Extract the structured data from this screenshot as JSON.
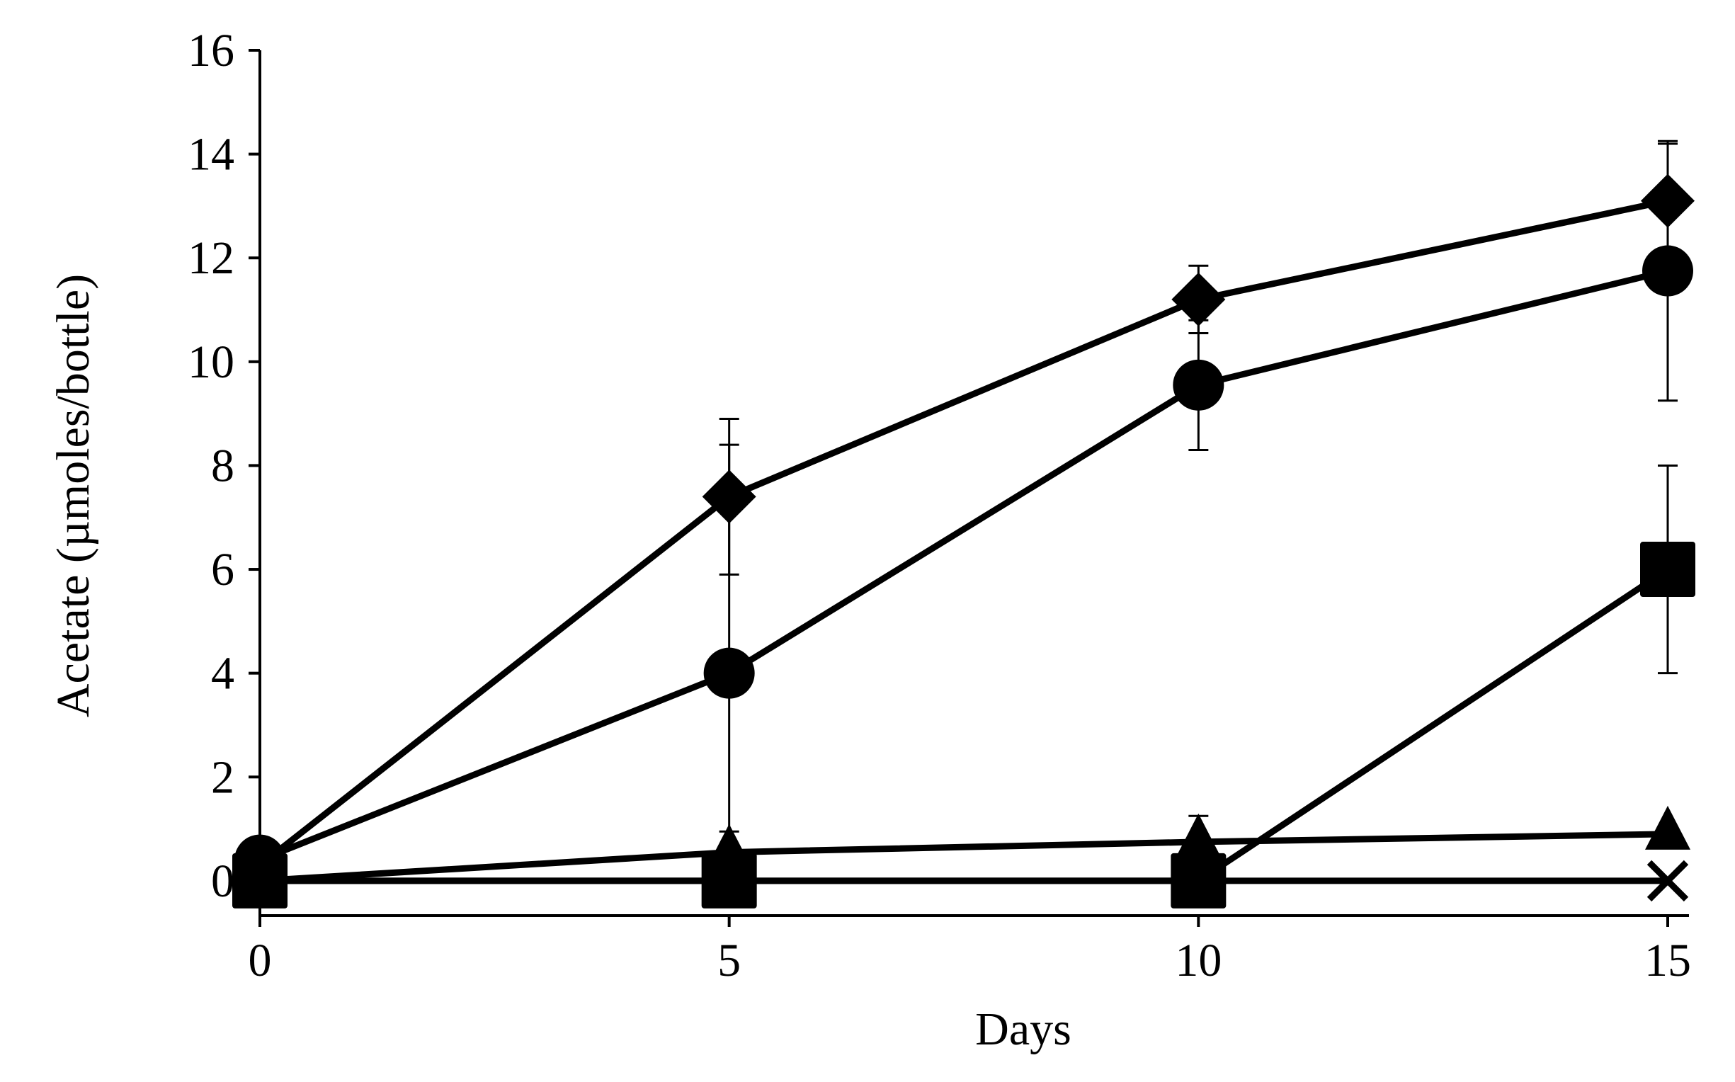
{
  "chart_data": {
    "type": "line",
    "x_label": "Days",
    "y_label": "Acetate (µmoles/bottle)",
    "x": [
      0,
      5,
      10,
      15
    ],
    "xlim": [
      0,
      15
    ],
    "xticks": [
      0,
      5,
      10,
      15
    ],
    "ylim": [
      -0.67,
      16
    ],
    "yticks": [
      0,
      2,
      4,
      6,
      8,
      10,
      12,
      14,
      16
    ],
    "grid": false,
    "series": [
      {
        "marker": "diamond",
        "color": "#000000",
        "values": [
          0.3,
          7.4,
          11.2,
          13.1
        ],
        "errors": [
          null,
          1.5,
          0.65,
          1.1
        ]
      },
      {
        "marker": "circle",
        "color": "#000000",
        "values": [
          0.4,
          4.0,
          9.55,
          11.75
        ],
        "errors": [
          null,
          4.4,
          1.25,
          2.5
        ]
      },
      {
        "marker": "square",
        "color": "#000000",
        "values": [
          0,
          0,
          0,
          6.0
        ],
        "errors": [
          null,
          null,
          null,
          2.0
        ]
      },
      {
        "marker": "triangle",
        "color": "#000000",
        "values": [
          0,
          0.55,
          0.75,
          0.9
        ],
        "errors": [
          null,
          0.4,
          0.5,
          null
        ]
      },
      {
        "marker": "x",
        "color": "#000000",
        "values": [
          0,
          0,
          0,
          0
        ],
        "errors": [
          null,
          null,
          null,
          null
        ]
      }
    ]
  }
}
